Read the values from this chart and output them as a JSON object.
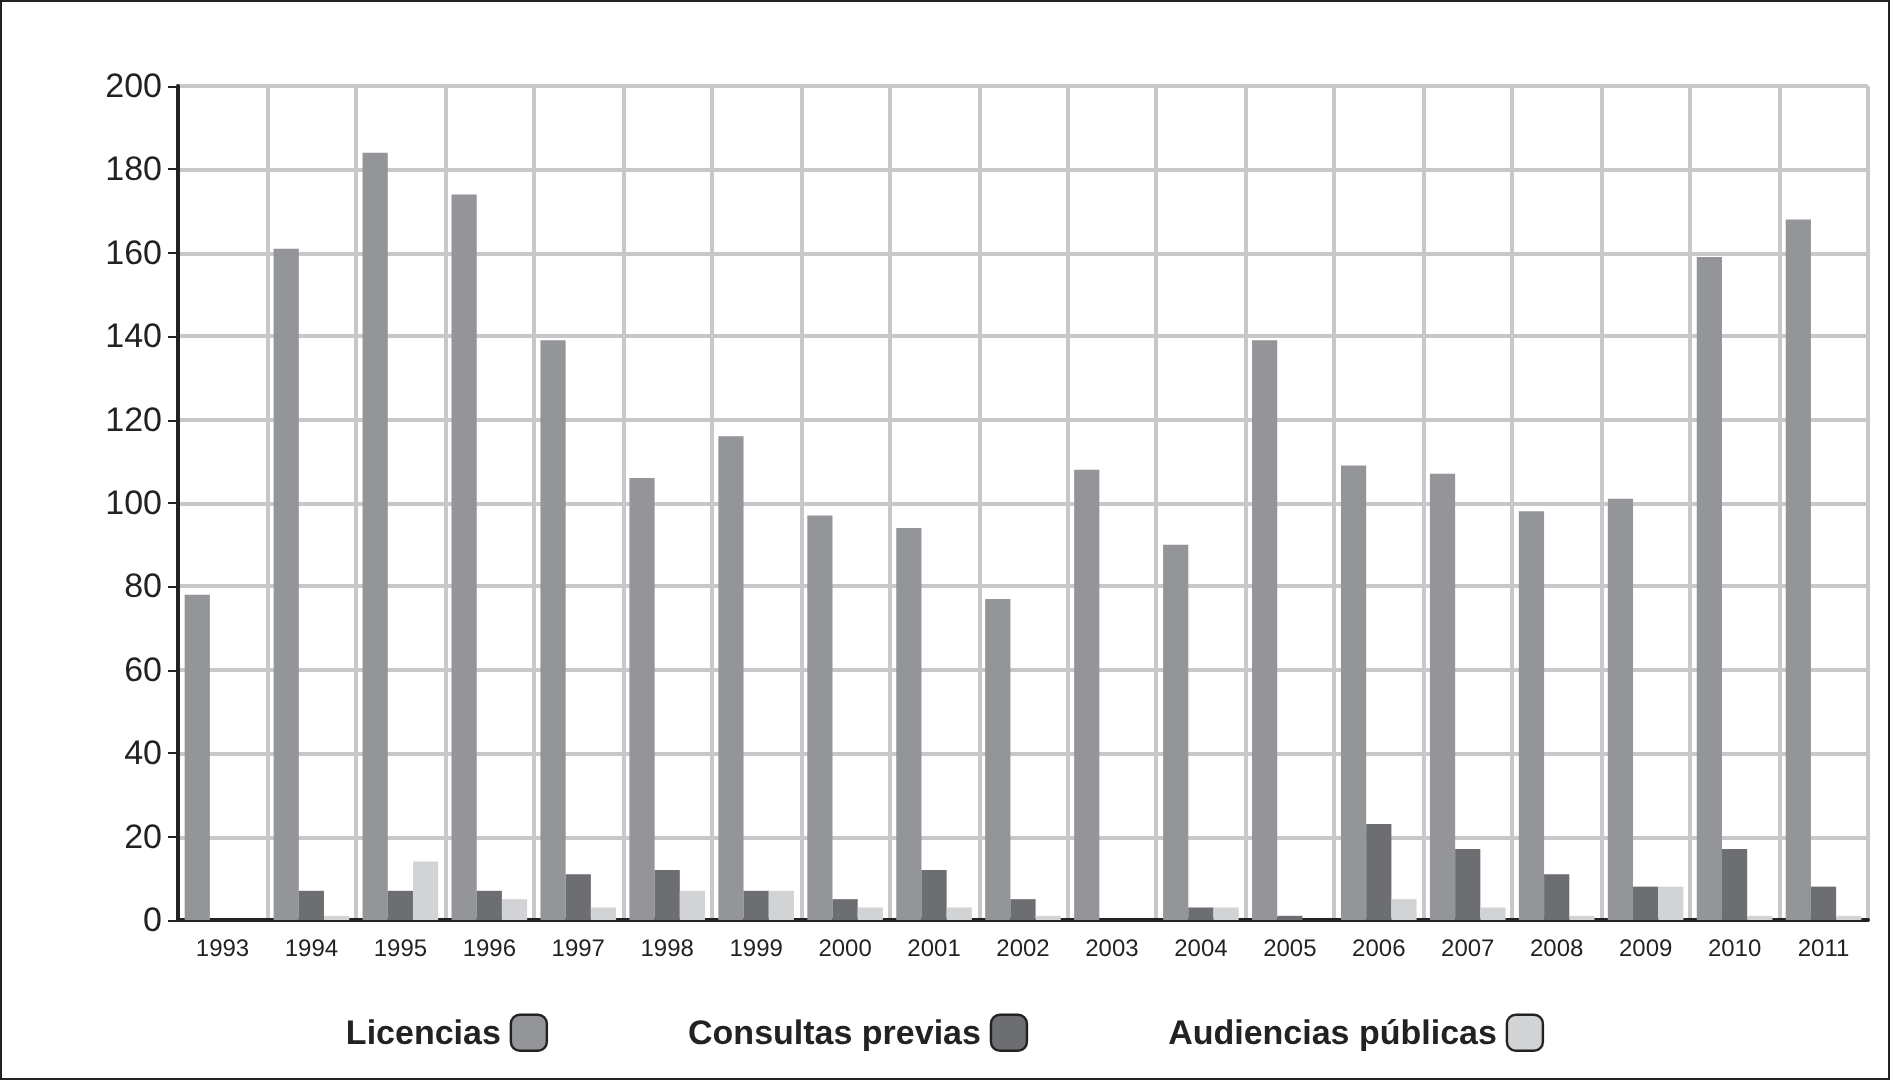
{
  "chart_data": {
    "type": "bar",
    "categories": [
      "1993",
      "1994",
      "1995",
      "1996",
      "1997",
      "1998",
      "1999",
      "2000",
      "2001",
      "2002",
      "2003",
      "2004",
      "2005",
      "2006",
      "2007",
      "2008",
      "2009",
      "2010",
      "2011"
    ],
    "series": [
      {
        "name": "Licencias",
        "color": "#939598",
        "values": [
          78,
          161,
          184,
          174,
          139,
          106,
          116,
          97,
          94,
          77,
          108,
          90,
          139,
          109,
          107,
          98,
          101,
          159,
          168
        ]
      },
      {
        "name": "Consultas previas",
        "color": "#6d6e71",
        "values": [
          0,
          7,
          7,
          7,
          11,
          12,
          7,
          5,
          12,
          5,
          0,
          3,
          1,
          23,
          17,
          11,
          8,
          17,
          8
        ]
      },
      {
        "name": "Audiencias públicas",
        "color": "#d1d3d4",
        "values": [
          0,
          1,
          14,
          5,
          3,
          7,
          7,
          3,
          3,
          1,
          0,
          3,
          0,
          5,
          3,
          1,
          8,
          1,
          1
        ]
      }
    ],
    "ylim": [
      0,
      200
    ],
    "yticks": [
      0,
      20,
      40,
      60,
      80,
      100,
      120,
      140,
      160,
      180,
      200
    ],
    "grid": true,
    "legend": "bottom"
  }
}
